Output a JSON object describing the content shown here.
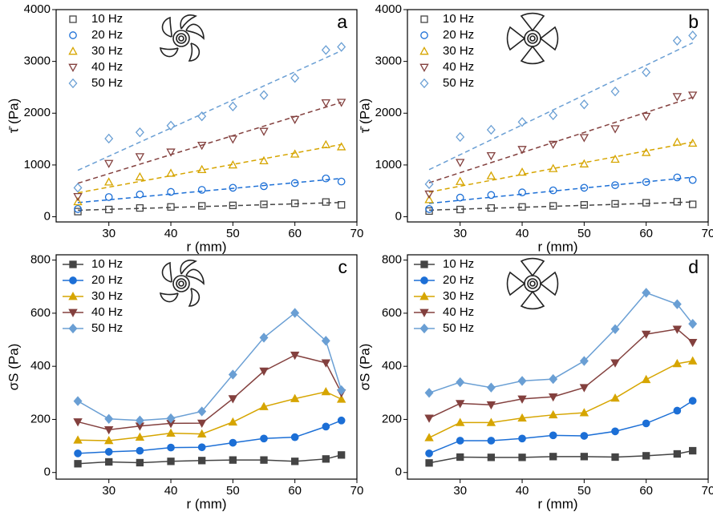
{
  "chart_data": [
    {
      "type": "scatter",
      "label": "a",
      "xlabel": "r (mm)",
      "ylabel": "τ̄ (Pa)",
      "marker_fill": "open",
      "fit": true,
      "x": [
        25,
        30,
        35,
        40,
        45,
        50,
        55,
        60,
        65,
        67.5
      ],
      "xlim": [
        21.5,
        70
      ],
      "xticks": [
        30,
        40,
        50,
        60,
        70
      ],
      "ylim": [
        -100,
        4000
      ],
      "yticks": [
        0,
        1000,
        2000,
        3000,
        4000
      ],
      "series": [
        {
          "name": "10 Hz",
          "color": "#444444",
          "marker": "square",
          "values": [
            100,
            140,
            170,
            190,
            210,
            220,
            240,
            260,
            285,
            230
          ]
        },
        {
          "name": "20 Hz",
          "color": "#1c6fd6",
          "marker": "circle",
          "values": [
            150,
            380,
            430,
            480,
            520,
            560,
            590,
            650,
            740,
            680
          ]
        },
        {
          "name": "30 Hz",
          "color": "#d6a500",
          "marker": "triangle-up",
          "values": [
            290,
            670,
            770,
            840,
            910,
            1000,
            1080,
            1210,
            1390,
            1350
          ]
        },
        {
          "name": "40 Hz",
          "color": "#83403e",
          "marker": "triangle-down",
          "values": [
            390,
            1030,
            1160,
            1250,
            1380,
            1500,
            1650,
            1880,
            2200,
            2210
          ]
        },
        {
          "name": "50 Hz",
          "color": "#6a9fd4",
          "marker": "diamond",
          "values": [
            560,
            1510,
            1630,
            1760,
            1940,
            2130,
            2350,
            2680,
            3220,
            3280
          ]
        }
      ]
    },
    {
      "type": "scatter",
      "label": "b",
      "xlabel": "r (mm)",
      "ylabel": "τ̄ (Pa)",
      "marker_fill": "open",
      "fit": true,
      "x": [
        25,
        30,
        35,
        40,
        45,
        50,
        55,
        60,
        65,
        67.5
      ],
      "xlim": [
        21.5,
        70
      ],
      "xticks": [
        30,
        40,
        50,
        60,
        70
      ],
      "ylim": [
        -100,
        4000
      ],
      "yticks": [
        0,
        1000,
        2000,
        3000,
        4000
      ],
      "series": [
        {
          "name": "10 Hz",
          "color": "#444444",
          "marker": "square",
          "values": [
            110,
            140,
            170,
            190,
            210,
            230,
            250,
            270,
            290,
            240
          ]
        },
        {
          "name": "20 Hz",
          "color": "#1c6fd6",
          "marker": "circle",
          "values": [
            150,
            370,
            420,
            470,
            510,
            560,
            610,
            670,
            760,
            710
          ]
        },
        {
          "name": "30 Hz",
          "color": "#d6a500",
          "marker": "triangle-up",
          "values": [
            330,
            680,
            790,
            860,
            930,
            1020,
            1110,
            1240,
            1440,
            1420
          ]
        },
        {
          "name": "40 Hz",
          "color": "#83403e",
          "marker": "triangle-down",
          "values": [
            440,
            1050,
            1180,
            1300,
            1400,
            1530,
            1700,
            1940,
            2320,
            2350
          ]
        },
        {
          "name": "50 Hz",
          "color": "#6a9fd4",
          "marker": "diamond",
          "values": [
            630,
            1540,
            1680,
            1830,
            1960,
            2170,
            2420,
            2790,
            3400,
            3500
          ]
        }
      ]
    },
    {
      "type": "line",
      "label": "c",
      "xlabel": "r (mm)",
      "ylabel": "σS (Pa)",
      "marker_fill": "filled",
      "fit": false,
      "x": [
        25,
        30,
        35,
        40,
        45,
        50,
        55,
        60,
        65,
        67.5
      ],
      "xlim": [
        21.5,
        70
      ],
      "xticks": [
        30,
        40,
        50,
        60,
        70
      ],
      "ylim": [
        -25,
        820
      ],
      "yticks": [
        0,
        200,
        400,
        600,
        800
      ],
      "series": [
        {
          "name": "10 Hz",
          "color": "#444444",
          "marker": "square",
          "values": [
            33,
            40,
            37,
            42,
            45,
            47,
            47,
            42,
            51,
            66
          ]
        },
        {
          "name": "20 Hz",
          "color": "#1c6fd6",
          "marker": "circle",
          "values": [
            72,
            78,
            82,
            94,
            95,
            112,
            128,
            133,
            173,
            196
          ]
        },
        {
          "name": "30 Hz",
          "color": "#d6a500",
          "marker": "triangle-up",
          "values": [
            122,
            120,
            133,
            148,
            145,
            190,
            248,
            278,
            304,
            276
          ]
        },
        {
          "name": "40 Hz",
          "color": "#83403e",
          "marker": "triangle-down",
          "values": [
            191,
            161,
            175,
            185,
            186,
            278,
            382,
            442,
            413,
            300
          ]
        },
        {
          "name": "50 Hz",
          "color": "#6a9fd4",
          "marker": "diamond",
          "values": [
            269,
            202,
            196,
            204,
            230,
            369,
            508,
            601,
            496,
            310
          ]
        }
      ]
    },
    {
      "type": "line",
      "label": "d",
      "xlabel": "r (mm)",
      "ylabel": "σS (Pa)",
      "marker_fill": "filled",
      "fit": false,
      "x": [
        25,
        30,
        35,
        40,
        45,
        50,
        55,
        60,
        65,
        67.5
      ],
      "xlim": [
        21.5,
        70
      ],
      "xticks": [
        30,
        40,
        50,
        60,
        70
      ],
      "ylim": [
        -25,
        820
      ],
      "yticks": [
        0,
        200,
        400,
        600,
        800
      ],
      "series": [
        {
          "name": "10 Hz",
          "color": "#444444",
          "marker": "square",
          "values": [
            36,
            58,
            57,
            57,
            60,
            60,
            58,
            63,
            70,
            82
          ]
        },
        {
          "name": "20 Hz",
          "color": "#1c6fd6",
          "marker": "circle",
          "values": [
            72,
            120,
            120,
            128,
            140,
            138,
            155,
            185,
            233,
            270
          ]
        },
        {
          "name": "30 Hz",
          "color": "#d6a500",
          "marker": "triangle-up",
          "values": [
            131,
            188,
            188,
            205,
            217,
            225,
            280,
            350,
            410,
            420
          ]
        },
        {
          "name": "40 Hz",
          "color": "#83403e",
          "marker": "triangle-down",
          "values": [
            205,
            260,
            255,
            277,
            285,
            320,
            413,
            521,
            540,
            490
          ]
        },
        {
          "name": "50 Hz",
          "color": "#6a9fd4",
          "marker": "diamond",
          "values": [
            300,
            340,
            320,
            345,
            352,
            420,
            540,
            677,
            634,
            560
          ]
        }
      ]
    }
  ]
}
